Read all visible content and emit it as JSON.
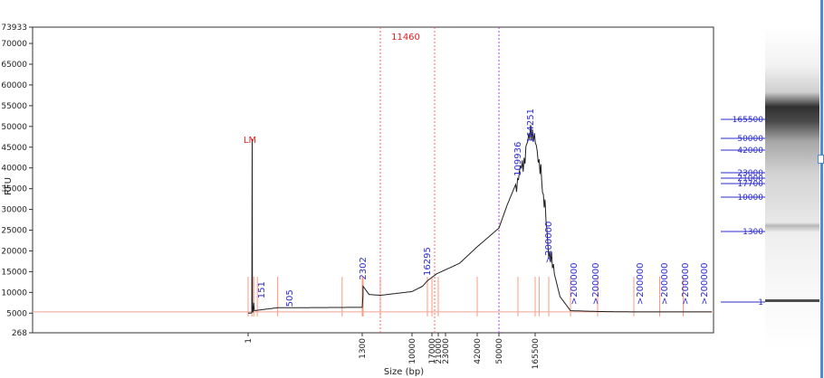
{
  "chart_data": {
    "type": "line",
    "ylabel": "RFU",
    "xlabel": "Size (bp)",
    "y_ticks": [
      268,
      5000,
      10000,
      15000,
      20000,
      25000,
      30000,
      35000,
      40000,
      45000,
      50000,
      55000,
      60000,
      65000,
      70000,
      73933
    ],
    "ylim": [
      268,
      73933
    ],
    "x_ticks": [
      "1",
      "1300",
      "10000",
      "17000",
      "21000",
      "23000",
      "42000",
      "50000",
      "165500"
    ],
    "peak_labels": [
      {
        "text": "151",
        "x_size": "151",
        "rfu": 8500
      },
      {
        "text": "505",
        "x_size": "505",
        "rfu": 6500
      },
      {
        "text": "2302",
        "x_size": "2302",
        "rfu": 13000
      },
      {
        "text": "16295",
        "x_size": "16295",
        "rfu": 14000
      },
      {
        "text": "109936",
        "x_size": "109936",
        "rfu": 38000
      },
      {
        "text": "164251",
        "x_size": "164251",
        "rfu": 46000
      },
      {
        "text": ">200000",
        "x_size": ">200000",
        "rfu": 17000
      },
      {
        "text": ">200000",
        "x_size": ">200000",
        "rfu": 7000
      },
      {
        "text": ">200000",
        "x_size": ">200000",
        "rfu": 7000
      },
      {
        "text": ">200000",
        "x_size": ">200000",
        "rfu": 7000
      },
      {
        "text": ">200000",
        "x_size": ">200000",
        "rfu": 7000
      },
      {
        "text": ">200000",
        "x_size": ">200000",
        "rfu": 7000
      },
      {
        "text": ">200000",
        "x_size": ">200000",
        "rfu": 7000
      }
    ],
    "marker_label": "LM",
    "marker_peak_rfu": 47000,
    "smear_marker_label": "11460",
    "series": [
      {
        "values": [
          [
            1,
            5000
          ],
          [
            2,
            5000
          ],
          [
            3,
            5050
          ],
          [
            4,
            5100
          ],
          [
            4.5,
            47000
          ],
          [
            5,
            6500
          ],
          [
            6,
            5200
          ],
          [
            8,
            7500
          ],
          [
            10,
            5600
          ],
          [
            30,
            5700
          ],
          [
            300,
            6300
          ],
          [
            1300,
            6400
          ],
          [
            2000,
            9000
          ],
          [
            2302,
            11500
          ],
          [
            3000,
            9500
          ],
          [
            5000,
            9300
          ],
          [
            10000,
            10200
          ],
          [
            14000,
            11500
          ],
          [
            16295,
            12800
          ],
          [
            20000,
            14500
          ],
          [
            30000,
            17000
          ],
          [
            42000,
            21000
          ],
          [
            50000,
            25500
          ],
          [
            70000,
            31000
          ],
          [
            100000,
            36000
          ],
          [
            130000,
            41000
          ],
          [
            150000,
            46000
          ],
          [
            164251,
            50000
          ],
          [
            175000,
            42000
          ],
          [
            190000,
            30000
          ],
          [
            200000,
            20000
          ],
          [
            215000,
            9000
          ],
          [
            230000,
            5600
          ],
          [
            260000,
            5400
          ],
          [
            300000,
            5300
          ],
          [
            400000,
            5300
          ]
        ]
      }
    ],
    "ladder_labels": [
      "165500",
      "50000",
      "42000",
      "23000",
      "21000",
      "17700",
      "10000",
      "1300",
      "1"
    ],
    "colors": {
      "trace": "#202020",
      "axis_text": "#222222",
      "label_blue": "#2b2bcf",
      "label_red": "#e02020",
      "redline": "#ff9a80",
      "magenta": "#b040e0"
    }
  }
}
